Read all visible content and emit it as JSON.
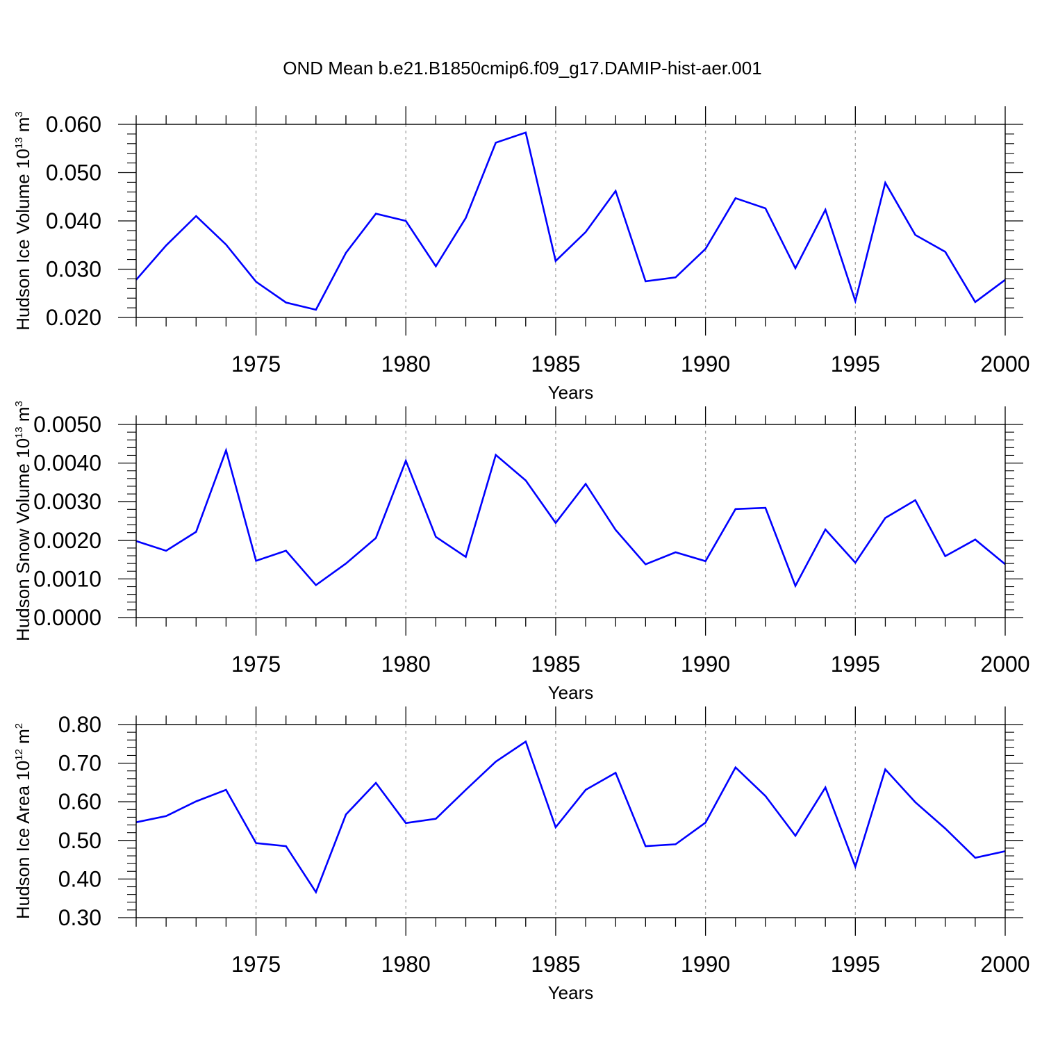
{
  "title": "OND Mean b.e21.B1850cmip6.f09_g17.DAMIP-hist-aer.001",
  "colors": {
    "line": "#0000ff",
    "axis": "#000000",
    "grid": "#a0a0a0"
  },
  "chart_data": [
    {
      "type": "line",
      "xlabel": "Years",
      "ylabel": {
        "text": "Hudson Ice Volume 10",
        "sup": "13",
        "unit": " m",
        "unit_sup": "3"
      },
      "xlim": [
        1971,
        2000
      ],
      "ylim": [
        0.02,
        0.06
      ],
      "xticks": [
        1975,
        1980,
        1985,
        1990,
        1995,
        2000
      ],
      "yticks": [
        "0.020",
        "0.030",
        "0.040",
        "0.050",
        "0.060"
      ],
      "grid": "vertical dashed at major x ticks",
      "x": [
        1971,
        1972,
        1973,
        1974,
        1975,
        1976,
        1977,
        1978,
        1979,
        1980,
        1981,
        1982,
        1983,
        1984,
        1985,
        1986,
        1987,
        1988,
        1989,
        1990,
        1991,
        1992,
        1993,
        1994,
        1995,
        1996,
        1997,
        1998,
        1999,
        2000
      ],
      "y": [
        0.0278,
        0.0349,
        0.041,
        0.0351,
        0.0274,
        0.0231,
        0.0216,
        0.0334,
        0.0415,
        0.04,
        0.0306,
        0.0406,
        0.0562,
        0.0583,
        0.0317,
        0.0377,
        0.0462,
        0.0275,
        0.0283,
        0.0342,
        0.0447,
        0.0426,
        0.0302,
        0.0423,
        0.0234,
        0.0479,
        0.0371,
        0.0336,
        0.0232,
        0.0278
      ]
    },
    {
      "type": "line",
      "xlabel": "Years",
      "ylabel": {
        "text": "Hudson Snow Volume 10",
        "sup": "13",
        "unit": " m",
        "unit_sup": "3"
      },
      "xlim": [
        1971,
        2000
      ],
      "ylim": [
        0.0,
        0.005
      ],
      "xticks": [
        1975,
        1980,
        1985,
        1990,
        1995,
        2000
      ],
      "yticks": [
        "0.0000",
        "0.0010",
        "0.0020",
        "0.0030",
        "0.0040",
        "0.0050"
      ],
      "grid": "vertical dashed at major x ticks",
      "x": [
        1971,
        1972,
        1973,
        1974,
        1975,
        1976,
        1977,
        1978,
        1979,
        1980,
        1981,
        1982,
        1983,
        1984,
        1985,
        1986,
        1987,
        1988,
        1989,
        1990,
        1991,
        1992,
        1993,
        1994,
        1995,
        1996,
        1997,
        1998,
        1999,
        2000
      ],
      "y": [
        0.00198,
        0.00173,
        0.00222,
        0.00433,
        0.00147,
        0.00173,
        0.00084,
        0.0014,
        0.00206,
        0.00406,
        0.00209,
        0.00157,
        0.00421,
        0.00355,
        0.00245,
        0.00346,
        0.00227,
        0.00138,
        0.00169,
        0.00146,
        0.00281,
        0.00284,
        0.00082,
        0.00228,
        0.00142,
        0.00258,
        0.00304,
        0.00159,
        0.00202,
        0.00138
      ]
    },
    {
      "type": "line",
      "xlabel": "Years",
      "ylabel": {
        "text": "Hudson Ice Area 10",
        "sup": "12",
        "unit": " m",
        "unit_sup": "2"
      },
      "xlim": [
        1971,
        2000
      ],
      "ylim": [
        0.3,
        0.8
      ],
      "xticks": [
        1975,
        1980,
        1985,
        1990,
        1995,
        2000
      ],
      "yticks": [
        "0.30",
        "0.40",
        "0.50",
        "0.60",
        "0.70",
        "0.80"
      ],
      "grid": "vertical dashed at major x ticks",
      "x": [
        1971,
        1972,
        1973,
        1974,
        1975,
        1976,
        1977,
        1978,
        1979,
        1980,
        1981,
        1982,
        1983,
        1984,
        1985,
        1986,
        1987,
        1988,
        1989,
        1990,
        1991,
        1992,
        1993,
        1994,
        1995,
        1996,
        1997,
        1998,
        1999,
        2000
      ],
      "y": [
        0.547,
        0.563,
        0.601,
        0.631,
        0.493,
        0.485,
        0.366,
        0.567,
        0.649,
        0.545,
        0.556,
        0.631,
        0.704,
        0.756,
        0.534,
        0.631,
        0.675,
        0.485,
        0.49,
        0.546,
        0.689,
        0.615,
        0.512,
        0.637,
        0.432,
        0.684,
        0.599,
        0.531,
        0.455,
        0.472
      ]
    }
  ]
}
